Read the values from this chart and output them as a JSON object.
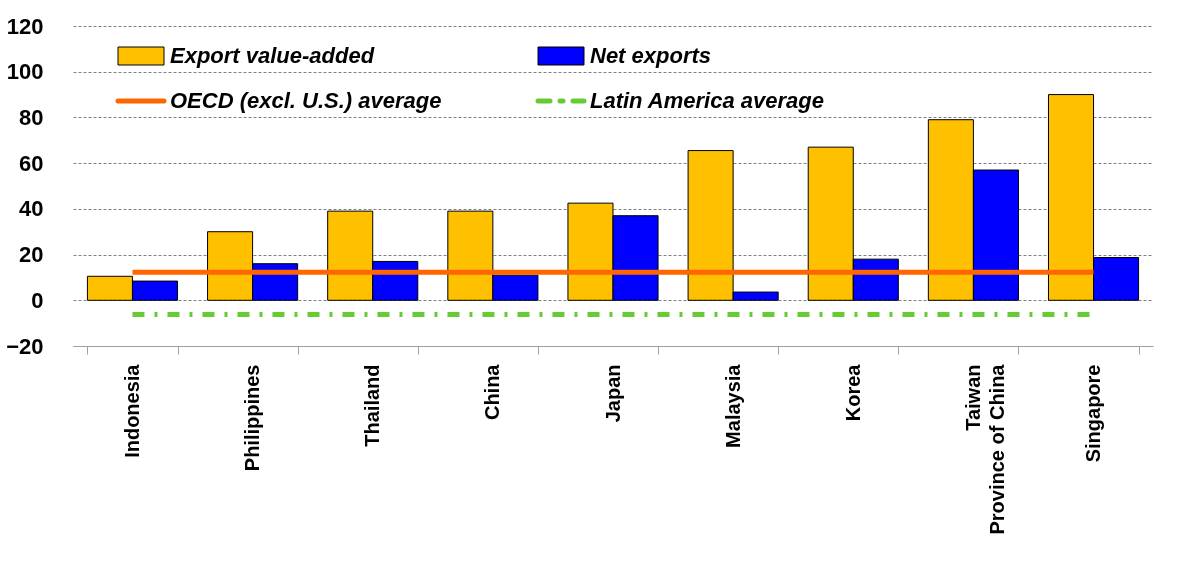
{
  "chart_data": {
    "type": "bar",
    "categories": [
      "Indonesia",
      "Philippines",
      "Thailand",
      "China",
      "Japan",
      "Malaysia",
      "Korea",
      "Taiwan Province of China",
      "Singapore"
    ],
    "series": [
      {
        "name": "Export value-added",
        "color": "#ffc000",
        "values": [
          10.5,
          30,
          39,
          39,
          42.5,
          65.5,
          67,
          79,
          90
        ]
      },
      {
        "name": "Net exports",
        "color": "#0000ff",
        "values": [
          8.4,
          16,
          17,
          11,
          37,
          3.6,
          18,
          57,
          18.7
        ]
      }
    ],
    "ref_lines": [
      {
        "axis": "y",
        "value": 12.3,
        "label": "OECD (excl. U.S.) average",
        "color": "#ff6600",
        "line_style": "solid"
      },
      {
        "axis": "y",
        "value": -6.2,
        "label": "Latin America average",
        "color": "#66cc33",
        "line_style": "dashed"
      }
    ],
    "ylim": [
      -20,
      120
    ],
    "yticks": [
      -20,
      0,
      20,
      40,
      60,
      80,
      100,
      120
    ],
    "grid": "y",
    "legend": "top left"
  }
}
